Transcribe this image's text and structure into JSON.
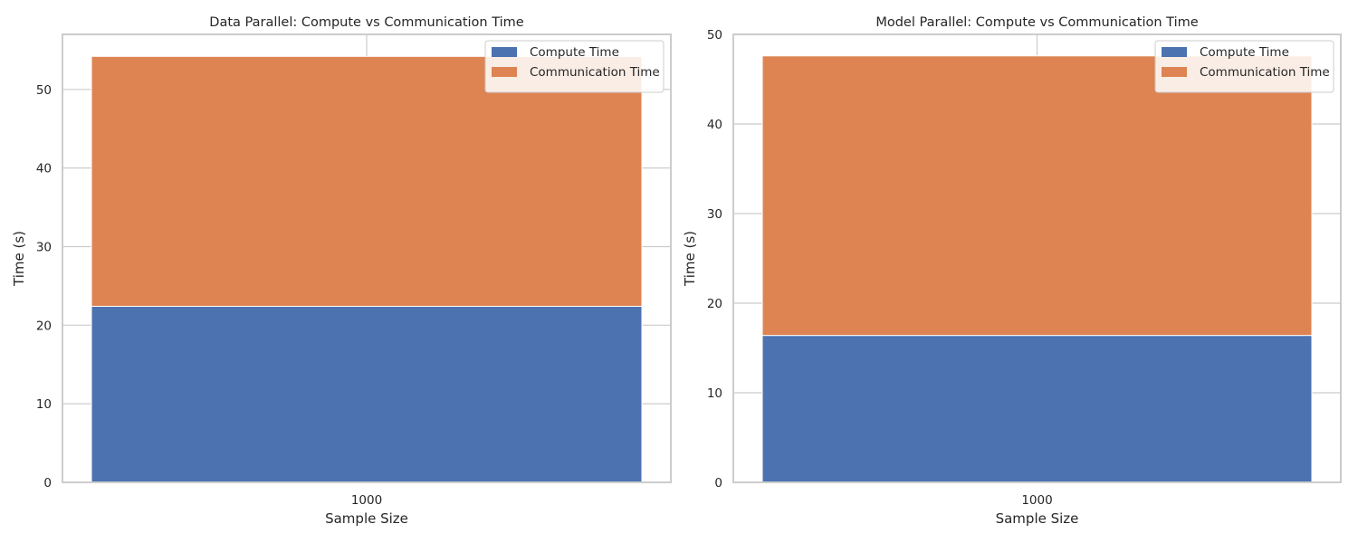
{
  "chart_data": [
    {
      "type": "bar",
      "stacked": true,
      "title": "Data Parallel: Compute vs Communication Time",
      "xlabel": "Sample Size",
      "ylabel": "Time (s)",
      "categories": [
        "1000"
      ],
      "ylim": [
        0,
        57
      ],
      "yticks": [
        0,
        10,
        20,
        30,
        40,
        50
      ],
      "grid": true,
      "legend_position": "top-right",
      "series": [
        {
          "name": "Compute Time",
          "values": [
            22.4
          ],
          "color": "#4c72b0"
        },
        {
          "name": "Communication Time",
          "values": [
            31.8
          ],
          "color": "#dd8452"
        }
      ]
    },
    {
      "type": "bar",
      "stacked": true,
      "title": "Model Parallel: Compute vs Communication Time",
      "xlabel": "Sample Size",
      "ylabel": "Time (s)",
      "categories": [
        "1000"
      ],
      "ylim": [
        0,
        50
      ],
      "yticks": [
        0,
        10,
        20,
        30,
        40,
        50
      ],
      "grid": true,
      "legend_position": "top-right",
      "series": [
        {
          "name": "Compute Time",
          "values": [
            16.4
          ],
          "color": "#4c72b0"
        },
        {
          "name": "Communication Time",
          "values": [
            31.2
          ],
          "color": "#dd8452"
        }
      ]
    }
  ]
}
